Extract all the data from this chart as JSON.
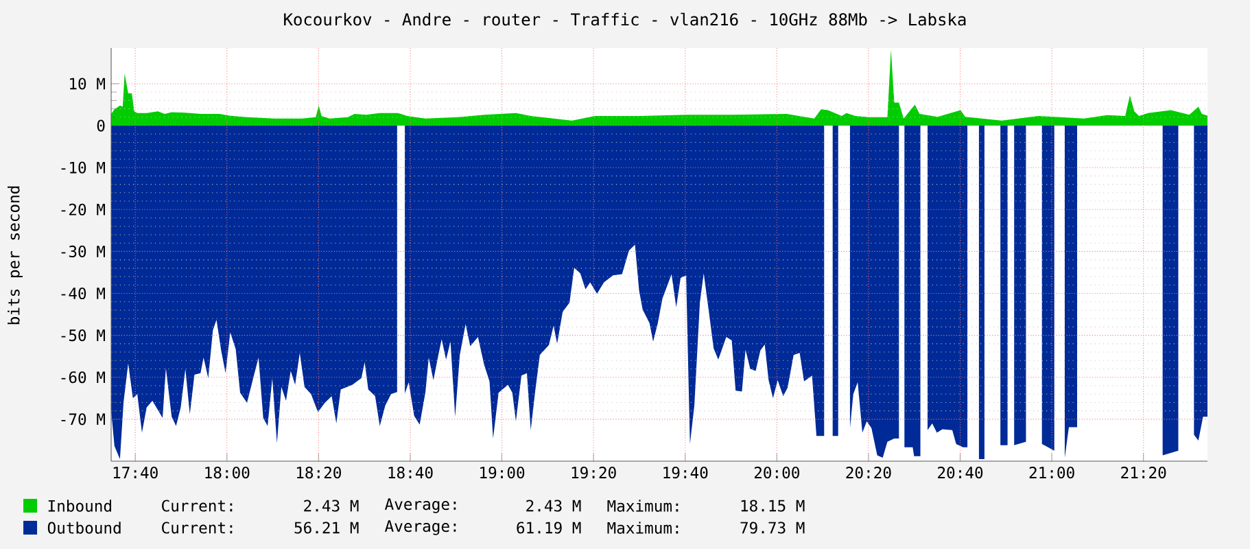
{
  "chart_data": {
    "type": "area",
    "title": "Kocourkov - Andre - router - Traffic - vlan216 - 10GHz 88Mb -> Labska",
    "ylabel": "bits per second",
    "xlim": [
      17.579,
      21.566
    ],
    "ylim": [
      -80,
      18.5
    ],
    "xticks": [
      {
        "value": 17.6667,
        "label": "17:40"
      },
      {
        "value": 18.0,
        "label": "18:00"
      },
      {
        "value": 18.3333,
        "label": "18:20"
      },
      {
        "value": 18.6667,
        "label": "18:40"
      },
      {
        "value": 19.0,
        "label": "19:00"
      },
      {
        "value": 19.3333,
        "label": "19:20"
      },
      {
        "value": 19.6667,
        "label": "19:40"
      },
      {
        "value": 20.0,
        "label": "20:00"
      },
      {
        "value": 20.3333,
        "label": "20:20"
      },
      {
        "value": 20.6667,
        "label": "20:40"
      },
      {
        "value": 21.0,
        "label": "21:00"
      },
      {
        "value": 21.3333,
        "label": "21:20"
      }
    ],
    "yticks": [
      {
        "value": 10,
        "label": "10 M"
      },
      0,
      {
        "value": -10,
        "label": "-10 M"
      },
      {
        "value": -20,
        "label": "-20 M"
      },
      {
        "value": -30,
        "label": "-30 M"
      },
      {
        "value": -40,
        "label": "-40 M"
      },
      {
        "value": -50,
        "label": "-50 M"
      },
      {
        "value": -60,
        "label": "-60 M"
      },
      {
        "value": -70,
        "label": "-70 M"
      }
    ],
    "grid": true,
    "legend": "bottom",
    "series": [
      {
        "name": "Inbound",
        "color": "#00cc00",
        "x": [
          17.579,
          17.591,
          17.611,
          17.621,
          17.628,
          17.641,
          17.654,
          17.663,
          17.674,
          17.708,
          17.749,
          17.774,
          17.799,
          17.84,
          17.907,
          17.974,
          18.007,
          18.073,
          18.173,
          18.273,
          18.323,
          18.334,
          18.344,
          18.373,
          18.439,
          18.464,
          18.506,
          18.556,
          18.622,
          18.656,
          18.722,
          18.839,
          18.938,
          19.051,
          19.105,
          19.255,
          19.338,
          19.504,
          19.67,
          19.836,
          20.036,
          20.136,
          20.161,
          20.186,
          20.236,
          20.253,
          20.286,
          20.336,
          20.402,
          20.415,
          20.427,
          20.444,
          20.461,
          20.502,
          20.519,
          20.585,
          20.668,
          20.685,
          20.818,
          20.951,
          21.117,
          21.201,
          21.267,
          21.284,
          21.3,
          21.317,
          21.35,
          21.433,
          21.5,
          21.533,
          21.546,
          21.566
        ],
        "values": [
          2.8,
          3.9,
          4.8,
          4.5,
          12.4,
          7.7,
          7.7,
          3.4,
          3.0,
          3.0,
          3.4,
          2.8,
          3.2,
          3.1,
          2.8,
          2.8,
          2.4,
          2.0,
          1.7,
          1.7,
          2.0,
          4.8,
          2.3,
          1.7,
          2.0,
          2.8,
          2.6,
          3.0,
          3.0,
          2.3,
          1.7,
          2.0,
          2.6,
          3.0,
          2.3,
          1.2,
          2.3,
          2.3,
          2.6,
          2.6,
          2.8,
          1.7,
          3.9,
          3.7,
          2.3,
          3.0,
          2.3,
          2.0,
          2.0,
          18.15,
          5.5,
          5.5,
          1.7,
          5.0,
          2.8,
          2.1,
          3.7,
          2.1,
          1.2,
          2.3,
          1.7,
          2.5,
          2.3,
          7.2,
          3.4,
          2.3,
          3.0,
          3.7,
          2.6,
          4.5,
          2.8,
          2.4
        ]
      },
      {
        "name": "Outbound",
        "color": "#002a97",
        "x": [
          17.579,
          17.591,
          17.611,
          17.624,
          17.641,
          17.658,
          17.674,
          17.691,
          17.708,
          17.729,
          17.749,
          17.766,
          17.778,
          17.799,
          17.815,
          17.832,
          17.849,
          17.865,
          17.882,
          17.904,
          17.915,
          17.932,
          17.949,
          17.962,
          17.979,
          17.995,
          18.012,
          18.032,
          18.048,
          18.073,
          18.098,
          18.115,
          18.132,
          18.148,
          18.165,
          18.182,
          18.198,
          18.215,
          18.232,
          18.248,
          18.265,
          18.282,
          18.306,
          18.331,
          18.356,
          18.381,
          18.398,
          18.414,
          18.456,
          18.489,
          18.501,
          18.514,
          18.539,
          18.556,
          18.576,
          18.597,
          18.619,
          18.632,
          18.647,
          18.661,
          18.681,
          18.701,
          18.722,
          18.734,
          18.751,
          18.769,
          18.781,
          18.797,
          18.813,
          18.83,
          18.847,
          18.868,
          18.885,
          18.913,
          18.935,
          18.955,
          18.968,
          18.988,
          19.022,
          19.038,
          19.051,
          19.071,
          19.091,
          19.105,
          19.121,
          19.138,
          19.171,
          19.188,
          19.201,
          19.221,
          19.246,
          19.263,
          19.285,
          19.304,
          19.321,
          19.346,
          19.371,
          19.404,
          19.437,
          19.462,
          19.484,
          19.499,
          19.512,
          19.537,
          19.55,
          19.567,
          19.584,
          19.6,
          19.617,
          19.634,
          19.65,
          19.67,
          19.684,
          19.7,
          19.72,
          19.734,
          19.754,
          19.77,
          19.787,
          19.816,
          19.836,
          19.85,
          19.873,
          19.886,
          19.903,
          19.923,
          19.94,
          19.956,
          19.97,
          19.986,
          20.003,
          20.023,
          20.039,
          20.061,
          20.083,
          20.099,
          20.128,
          20.144,
          20.172,
          20.187,
          20.203,
          20.223,
          20.244,
          20.266,
          20.278,
          20.294,
          20.311,
          20.327,
          20.344,
          20.365,
          20.385,
          20.402,
          20.427,
          20.444,
          20.454,
          20.464,
          20.494,
          20.499,
          20.522,
          20.536,
          20.548,
          20.565,
          20.582,
          20.602,
          20.638,
          20.652,
          20.677,
          20.693,
          20.713,
          20.735,
          20.755,
          20.783,
          20.813,
          20.839,
          20.85,
          20.863,
          20.906,
          20.935,
          20.964,
          21.009,
          21.028,
          21.047,
          21.062,
          21.092,
          21.247,
          21.403,
          21.46,
          21.487,
          21.517,
          21.533,
          21.55,
          21.566
        ],
        "values": [
          -68,
          -76.4,
          -79.5,
          -66,
          -56.7,
          -65,
          -64,
          -73.2,
          -67.2,
          -65.6,
          -67.8,
          -69.7,
          -57.8,
          -69.4,
          -71.6,
          -67.2,
          -58,
          -68.8,
          -59.4,
          -59,
          -55.3,
          -60.2,
          -48.8,
          -46.3,
          -53.6,
          -59,
          -49.3,
          -53.3,
          -63.7,
          -66.1,
          -59.6,
          -55.3,
          -69.7,
          -71.6,
          -60.2,
          -75.7,
          -62.3,
          -65.6,
          -58.5,
          -61.8,
          -54.2,
          -62.3,
          -64,
          -68.3,
          -66.1,
          -64.5,
          -71,
          -62.9,
          -61.8,
          -60.2,
          -56.4,
          -62.9,
          -64.5,
          -71.6,
          -66.7,
          -64,
          -63.5,
          null,
          -63.9,
          -61.2,
          -69.2,
          -71.3,
          -63.5,
          -55.3,
          -60.7,
          -54.7,
          -50.9,
          -55.8,
          -51.5,
          -69.4,
          -54.7,
          -47.3,
          -52.6,
          -50.4,
          -56.9,
          -61,
          -74.6,
          -63.7,
          -61.8,
          -63.7,
          -70.5,
          -59.6,
          -59,
          -72.6,
          -63.4,
          -54.7,
          -52.3,
          -47.7,
          -52,
          -44.4,
          -42.2,
          -33.9,
          -35.2,
          -39,
          -37.4,
          -40.1,
          -37.4,
          -35.7,
          -35.4,
          -29.8,
          -28.4,
          -39.3,
          -43.9,
          -47.1,
          -51.5,
          -47.1,
          -41.2,
          -38.4,
          -35.4,
          -43.3,
          -36.3,
          -35.7,
          -75.9,
          -66.7,
          -42.2,
          -35.2,
          -45,
          -53.1,
          -55.8,
          -50.4,
          -51.2,
          -63.2,
          -63.4,
          -53.4,
          -58,
          -58.5,
          -53.6,
          -52.2,
          -60.7,
          -65,
          -60.7,
          -64.5,
          -62.5,
          -54.7,
          -54.2,
          -61,
          -59.6,
          -74,
          -74,
          null,
          -74,
          -74,
          null,
          -72.1,
          -64,
          -61.2,
          -73.2,
          -70.5,
          -72.1,
          -78.6,
          -79.2,
          -75.4,
          -74.6,
          -74.6,
          null,
          -76.7,
          -76.7,
          -78.8,
          -78.8,
          null,
          -72.6,
          -71,
          -73.2,
          -72.4,
          -72.6,
          -75.9,
          -76.7,
          -76.7,
          null,
          -79.5,
          -79.5,
          null,
          -76.2,
          -76.2,
          null,
          -76.2,
          -75.4,
          null,
          -75.9,
          -77.5,
          null,
          -79.2,
          -71.9,
          -71.9,
          null,
          -78.6,
          -77.5,
          null,
          -73.7,
          -75.1,
          -69.4,
          -69.4
        ]
      }
    ],
    "annotations": [
      "Current:",
      "2.43 M",
      "Average:",
      "2.43 M",
      "Maximum:",
      "18.15 M",
      "Current:",
      "56.21 M",
      "Average:",
      "61.19 M",
      "Maximum:",
      "79.73 M"
    ]
  }
}
